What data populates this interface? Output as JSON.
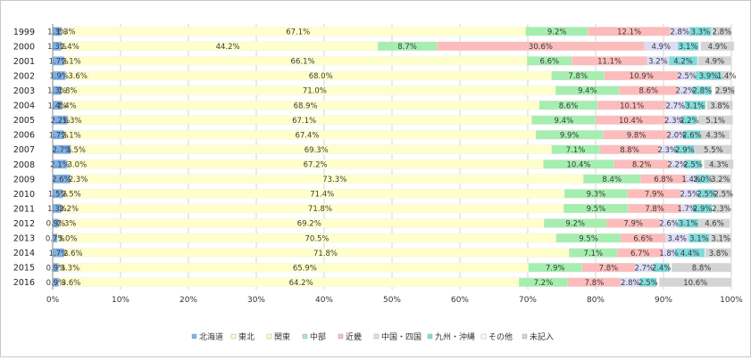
{
  "chart_data": {
    "type": "bar",
    "stacked": true,
    "orientation": "horizontal",
    "normalized_percent": true,
    "title": "",
    "xlabel": "",
    "ylabel": "",
    "xlim": [
      0,
      100
    ],
    "x_ticks": [
      "0%",
      "10%",
      "20%",
      "30%",
      "40%",
      "50%",
      "60%",
      "70%",
      "80%",
      "90%",
      "100%"
    ],
    "grid": true,
    "legend_position": "bottom",
    "categories": [
      "1999",
      "2000",
      "2001",
      "2002",
      "2003",
      "2004",
      "2005",
      "2006",
      "2007",
      "2008",
      "2009",
      "2010",
      "2011",
      "2012",
      "2013",
      "2014",
      "2015",
      "2016"
    ],
    "series": [
      {
        "name": "北海道",
        "color": "#7db2e8",
        "values": [
          1.3,
          1.3,
          1.7,
          1.9,
          1.3,
          1.4,
          2.2,
          1.7,
          2.7,
          2.1,
          2.6,
          1.5,
          1.3,
          0.9,
          0.7,
          1.7,
          0.9,
          0.9
        ]
      },
      {
        "name": "東北",
        "color": "#fffcc8",
        "values": [
          1.3,
          2.4,
          2.1,
          3.6,
          1.8,
          1.4,
          1.3,
          2.1,
          1.5,
          3.0,
          2.3,
          2.5,
          2.2,
          2.3,
          3.0,
          2.6,
          3.3,
          3.6
        ]
      },
      {
        "name": "関東",
        "color": "#ffffcc",
        "values": [
          67.1,
          44.2,
          66.1,
          68.0,
          71.0,
          68.9,
          67.1,
          67.4,
          69.3,
          67.2,
          73.3,
          71.4,
          71.8,
          69.2,
          70.5,
          71.8,
          65.9,
          64.2
        ]
      },
      {
        "name": "中部",
        "color": "#a6eeb0",
        "values": [
          9.2,
          8.7,
          6.6,
          7.8,
          9.4,
          8.6,
          9.4,
          9.9,
          7.1,
          10.4,
          8.4,
          9.3,
          9.5,
          9.2,
          9.5,
          7.1,
          7.9,
          7.2
        ]
      },
      {
        "name": "近畿",
        "color": "#fcbcbc",
        "values": [
          12.1,
          30.6,
          11.1,
          10.9,
          8.6,
          10.1,
          10.4,
          9.8,
          8.8,
          8.2,
          6.8,
          7.9,
          7.8,
          7.9,
          6.6,
          6.7,
          7.8,
          7.8
        ]
      },
      {
        "name": "中国・四国",
        "color": "#dcdcf8",
        "values": [
          2.8,
          4.9,
          3.2,
          2.5,
          2.2,
          2.7,
          2.3,
          2.0,
          2.3,
          2.2,
          1.4,
          2.5,
          1.7,
          2.6,
          3.4,
          1.8,
          2.7,
          2.8
        ]
      },
      {
        "name": "九州・沖縄",
        "color": "#80dcdc",
        "values": [
          3.3,
          3.1,
          4.2,
          3.9,
          2.8,
          3.1,
          2.2,
          2.6,
          2.9,
          2.5,
          2.0,
          2.5,
          2.9,
          3.1,
          3.1,
          4.4,
          2.4,
          2.5
        ]
      },
      {
        "name": "その他",
        "color": "#fffff0",
        "values": [
          0.1,
          0.3,
          0.1,
          0.0,
          0.5,
          0.2,
          0.2,
          0.0,
          0.0,
          0.4,
          0.0,
          0.0,
          0.2,
          0.0,
          0.1,
          0.1,
          0.3,
          0.4
        ]
      },
      {
        "name": "未記入",
        "color": "#d4d4d4",
        "values": [
          2.8,
          4.9,
          4.9,
          1.4,
          2.9,
          3.8,
          5.1,
          4.3,
          5.5,
          4.3,
          3.2,
          2.5,
          2.3,
          4.6,
          3.1,
          3.8,
          8.8,
          10.6
        ]
      }
    ],
    "labels": [
      [
        "1.3%",
        "1.3%",
        "67.1%",
        "9.2%",
        "12.1%",
        "2.8%",
        "3.3%",
        "",
        "2.8%"
      ],
      [
        "1.3%",
        "2.4%",
        "44.2%",
        "8.7%",
        "30.6%",
        "4.9%",
        "3.1%",
        "",
        "4.9%"
      ],
      [
        "1.7%",
        "2.1%",
        "66.1%",
        "6.6%",
        "11.1%",
        "3.2%",
        "4.2%",
        "",
        "4.9%"
      ],
      [
        "1.9%",
        "3.6%",
        "68.0%",
        "7.8%",
        "10.9%",
        "2.5%",
        "3.9%",
        "",
        "1.4%"
      ],
      [
        "1.3%",
        "1.8%",
        "71.0%",
        "9.4%",
        "8.6%",
        "2.2%",
        "2.8%",
        "",
        "2.9%"
      ],
      [
        "1.4%",
        "1.4%",
        "68.9%",
        "8.6%",
        "10.1%",
        "2.7%",
        "3.1%",
        "",
        "3.8%"
      ],
      [
        "2.2%",
        "1.3%",
        "67.1%",
        "9.4%",
        "10.4%",
        "2.3%",
        "2.2%",
        "",
        "5.1%"
      ],
      [
        "1.7%",
        "2.1%",
        "67.4%",
        "9.9%",
        "9.8%",
        "2.0%",
        "2.6%",
        "",
        "4.3%"
      ],
      [
        "2.7%",
        "1.5%",
        "69.3%",
        "7.1%",
        "8.8%",
        "2.3%",
        "2.9%",
        "",
        "5.5%"
      ],
      [
        "2.1%",
        "3.0%",
        "67.2%",
        "10.4%",
        "8.2%",
        "2.2%",
        "2.5%",
        "",
        "4.3%"
      ],
      [
        "2.6%",
        "2.3%",
        "73.3%",
        "8.4%",
        "6.8%",
        "1.4%",
        "2.0%",
        "",
        "3.2%"
      ],
      [
        "1.5%",
        "2.5%",
        "71.4%",
        "9.3%",
        "7.9%",
        "2.5%",
        "2.5%",
        "",
        "2.5%"
      ],
      [
        "1.3%",
        "2.2%",
        "71.8%",
        "9.5%",
        "7.8%",
        "1.7%",
        "2.9%",
        "",
        "2.3%"
      ],
      [
        "0.9%",
        "2.3%",
        "69.2%",
        "9.2%",
        "7.9%",
        "2.6%",
        "3.1%",
        "",
        "4.6%"
      ],
      [
        "0.7%",
        "3.0%",
        "70.5%",
        "9.5%",
        "6.6%",
        "3.4%",
        "3.1%",
        "",
        "3.1%"
      ],
      [
        "1.7%",
        "2.6%",
        "71.8%",
        "7.1%",
        "6.7%",
        "1.8%",
        "4.4%",
        "",
        "3.8%"
      ],
      [
        "0.9%",
        "3.3%",
        "65.9%",
        "7.9%",
        "7.8%",
        "2.7%",
        "2.4%",
        "",
        "8.8%"
      ],
      [
        "0.9%",
        "3.6%",
        "64.2%",
        "7.2%",
        "7.8%",
        "2.8%",
        "2.5%",
        "",
        "10.6%"
      ]
    ]
  }
}
